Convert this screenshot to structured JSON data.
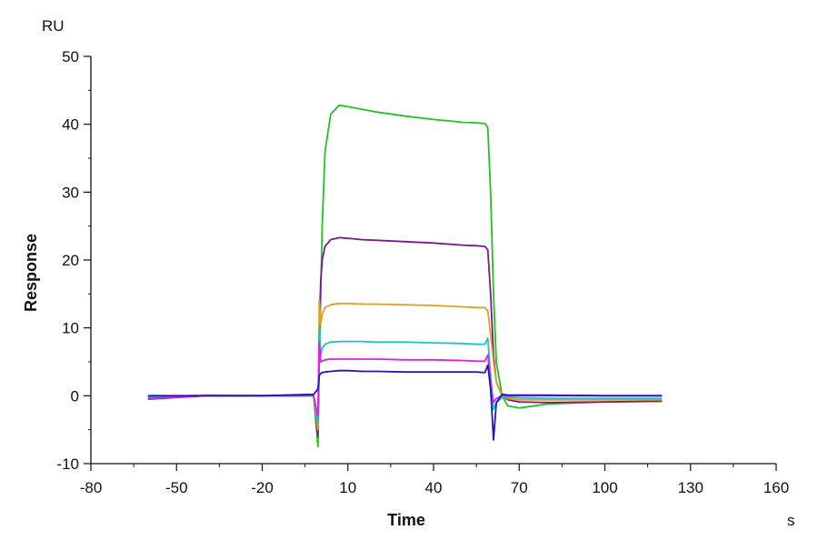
{
  "chart_data": {
    "type": "line",
    "title": "",
    "xlabel": "Time",
    "ylabel": "Response",
    "x_unit": "s",
    "y_unit": "RU",
    "xlim": [
      -80,
      160
    ],
    "ylim": [
      -10,
      50
    ],
    "x_ticks": [
      -80,
      -50,
      -20,
      10,
      40,
      70,
      100,
      130,
      160
    ],
    "y_ticks": [
      -10,
      0,
      10,
      20,
      30,
      40,
      50
    ],
    "grid": false,
    "legend": null,
    "series": [
      {
        "name": "green",
        "color": "#22c222",
        "x": [
          -60,
          -40,
          -20,
          -2,
          -0.5,
          0,
          0.5,
          1,
          2,
          4,
          7,
          10,
          15,
          20,
          30,
          40,
          50,
          55,
          58,
          59,
          60,
          61,
          62,
          64,
          66,
          70,
          80,
          100,
          120
        ],
        "y": [
          -0.3,
          0.1,
          0.0,
          0.0,
          -7.5,
          5,
          15,
          25,
          36,
          41.5,
          42.8,
          42.6,
          42.2,
          41.8,
          41.2,
          40.7,
          40.3,
          40.2,
          40.1,
          39.5,
          30,
          15,
          5,
          0,
          -1.5,
          -1.8,
          -1.2,
          -0.9,
          -0.8
        ]
      },
      {
        "name": "purple",
        "color": "#7a1a8a",
        "x": [
          -60,
          -40,
          -20,
          -2,
          -0.5,
          0,
          0.5,
          1,
          2,
          4,
          7,
          10,
          15,
          20,
          30,
          40,
          50,
          55,
          58,
          59,
          60,
          61,
          62,
          64,
          66,
          70,
          80,
          100,
          120
        ],
        "y": [
          -0.5,
          0.0,
          0.0,
          0.0,
          -6,
          10,
          17,
          20,
          22,
          23.0,
          23.3,
          23.2,
          23.0,
          22.9,
          22.7,
          22.5,
          22.2,
          22.1,
          22.0,
          21.5,
          15,
          6,
          2,
          0,
          -0.6,
          -0.9,
          -1.0,
          -0.9,
          -0.8
        ]
      },
      {
        "name": "orange",
        "color": "#e0a020",
        "x": [
          -60,
          -40,
          -20,
          -2,
          -0.5,
          0,
          0.5,
          1,
          2,
          4,
          7,
          10,
          15,
          20,
          30,
          40,
          50,
          55,
          58,
          59,
          60,
          61,
          62,
          64,
          66,
          70,
          80,
          100,
          120
        ],
        "y": [
          -0.2,
          0.1,
          0.0,
          0.0,
          -5,
          14,
          10.5,
          12,
          13.0,
          13.4,
          13.6,
          13.6,
          13.5,
          13.5,
          13.4,
          13.3,
          13.1,
          13.0,
          13.0,
          12.5,
          9,
          5,
          2,
          0,
          -0.4,
          -0.6,
          -0.6,
          -0.6,
          -0.6
        ]
      },
      {
        "name": "cyan",
        "color": "#20c0c8",
        "x": [
          -60,
          -40,
          -20,
          -2,
          -0.5,
          0,
          0.5,
          1,
          2,
          4,
          7,
          10,
          15,
          20,
          30,
          40,
          50,
          55,
          58,
          59,
          60,
          61,
          62,
          64,
          66,
          70,
          80,
          100,
          120
        ],
        "y": [
          -0.2,
          0.0,
          0.0,
          0.0,
          -4,
          10,
          6,
          7,
          7.6,
          7.9,
          8.0,
          8.0,
          8.0,
          7.9,
          7.9,
          7.8,
          7.7,
          7.6,
          7.6,
          8.5,
          3,
          -2,
          -1,
          -0.3,
          -0.2,
          -0.3,
          -0.4,
          -0.4,
          -0.4
        ]
      },
      {
        "name": "magenta",
        "color": "#e020e0",
        "x": [
          -60,
          -40,
          -20,
          -2,
          -0.5,
          0,
          0.5,
          1,
          2,
          4,
          7,
          10,
          15,
          20,
          30,
          40,
          50,
          55,
          58,
          59,
          60,
          61,
          62,
          64,
          66,
          70,
          80,
          100,
          120
        ],
        "y": [
          -0.4,
          0.0,
          0.0,
          0.0,
          -3,
          8,
          5,
          5.1,
          5.3,
          5.4,
          5.4,
          5.4,
          5.4,
          5.4,
          5.3,
          5.3,
          5.2,
          5.1,
          5.1,
          6,
          2,
          -1,
          -0.4,
          0.0,
          0.0,
          0.0,
          0.0,
          0.0,
          0.0
        ]
      },
      {
        "name": "blue",
        "color": "#1a1ab8",
        "x": [
          -60,
          -40,
          -20,
          -2,
          -0.5,
          0,
          0.5,
          1,
          2,
          4,
          7,
          10,
          15,
          20,
          30,
          40,
          50,
          55,
          58,
          59,
          60,
          61,
          62,
          64,
          66,
          70,
          80,
          100,
          120
        ],
        "y": [
          0.0,
          0.0,
          0.0,
          0.2,
          1,
          3.0,
          3.3,
          3.4,
          3.5,
          3.6,
          3.7,
          3.7,
          3.6,
          3.6,
          3.5,
          3.5,
          3.5,
          3.5,
          3.4,
          4.5,
          1,
          -6.5,
          -1,
          0.2,
          0.1,
          0.1,
          0.1,
          0.0,
          0.0
        ]
      }
    ]
  },
  "labels": {
    "y_unit": "RU",
    "x_unit": "s",
    "xlabel": "Time",
    "ylabel": "Response"
  }
}
